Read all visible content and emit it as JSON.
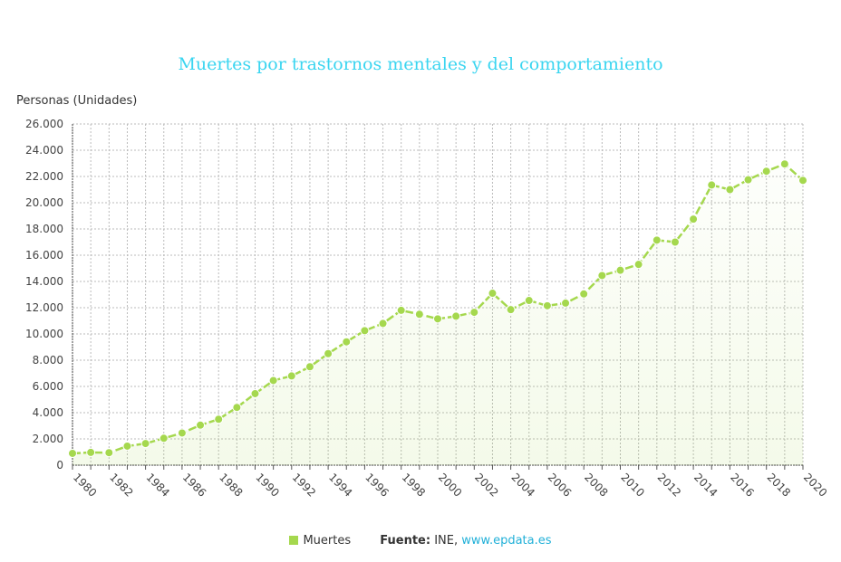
{
  "chart_data": {
    "type": "line",
    "title": "Muertes por trastornos mentales y del comportamiento",
    "ylabel": "Personas (Unidades)",
    "xlabel": "",
    "ylim": [
      0,
      26000
    ],
    "yticks": [
      "0",
      "2.000",
      "4.000",
      "6.000",
      "8.000",
      "10.000",
      "12.000",
      "14.000",
      "16.000",
      "18.000",
      "20.000",
      "22.000",
      "24.000",
      "26.000"
    ],
    "xticks": [
      "1980",
      "1982",
      "1984",
      "1986",
      "1988",
      "1990",
      "1992",
      "1994",
      "1996",
      "1998",
      "2000",
      "2002",
      "2004",
      "2006",
      "2008",
      "2010",
      "2012",
      "2014",
      "2016",
      "2018",
      "2020"
    ],
    "grid": true,
    "legend_position": "bottom",
    "color": "#a5d84e",
    "x": [
      1980,
      1981,
      1982,
      1983,
      1984,
      1985,
      1986,
      1987,
      1988,
      1989,
      1990,
      1991,
      1992,
      1993,
      1994,
      1995,
      1996,
      1997,
      1998,
      1999,
      2000,
      2001,
      2002,
      2003,
      2004,
      2005,
      2006,
      2007,
      2008,
      2009,
      2010,
      2011,
      2012,
      2013,
      2014,
      2015,
      2016,
      2017,
      2018,
      2019,
      2020
    ],
    "series": [
      {
        "name": "Muertes",
        "values": [
          900,
          970,
          950,
          1450,
          1650,
          2050,
          2450,
          3050,
          3500,
          4400,
          5450,
          6450,
          6800,
          7500,
          8500,
          9400,
          10250,
          10800,
          11800,
          11500,
          11150,
          11350,
          11650,
          13100,
          11850,
          12550,
          12150,
          12350,
          13050,
          14450,
          14850,
          15300,
          17150,
          17000,
          18750,
          21350,
          21000,
          21750,
          22400,
          22950,
          21700
        ]
      }
    ]
  },
  "footer": {
    "legend_label": "Muertes",
    "source_label": "Fuente:",
    "source_name": "INE,",
    "source_link": "www.epdata.es"
  }
}
